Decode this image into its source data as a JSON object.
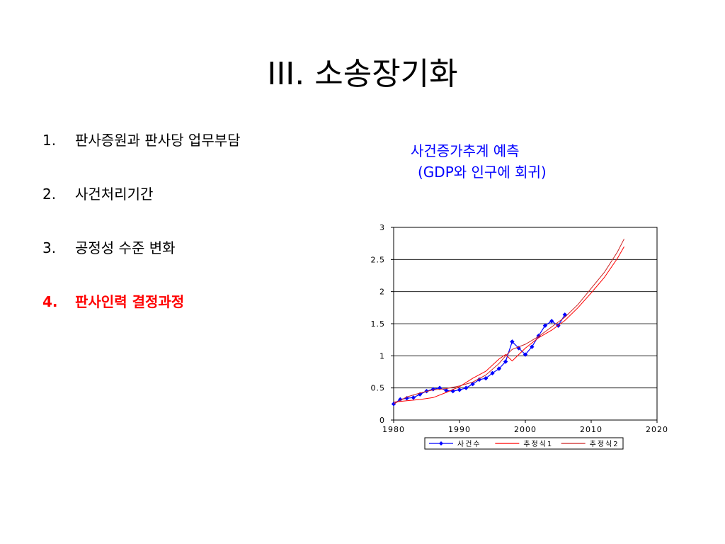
{
  "title": "III. 소송장기화",
  "agenda": [
    {
      "num": "1.",
      "label": "판사증원과 판사당 업무부담",
      "active": false
    },
    {
      "num": "2.",
      "label": "사건처리기간",
      "active": false
    },
    {
      "num": "3.",
      "label": "공정성 수준 변화",
      "active": false
    },
    {
      "num": "4.",
      "label": "판사인력 결정과정",
      "active": true
    }
  ],
  "caption": {
    "line1": "사건증가추계 예측",
    "line2": "(GDP와 인구에 회귀)"
  },
  "colors": {
    "accent": "#ff0000",
    "caption": "#0000ff",
    "series_actual": "#0000ff",
    "series_est1": "#ff0000",
    "series_est2": "#cc2222"
  },
  "chart_data": {
    "type": "line",
    "title": "",
    "xlabel": "",
    "ylabel": "",
    "xlim": [
      1980,
      2020
    ],
    "ylim": [
      0,
      3
    ],
    "xticks": [
      "1980",
      "1990",
      "2000",
      "2010",
      "2020"
    ],
    "yticks": [
      "0",
      "0.5",
      "1",
      "1.5",
      "2",
      "2.5",
      "3"
    ],
    "grid": "horizontal",
    "legend": "bottom",
    "series": [
      {
        "name": "사건수",
        "marker": "diamond",
        "x": [
          1980,
          1981,
          1982,
          1983,
          1984,
          1985,
          1986,
          1987,
          1988,
          1989,
          1990,
          1991,
          1992,
          1993,
          1994,
          1995,
          1996,
          1997,
          1998,
          1999,
          2000,
          2001,
          2002,
          2003,
          2004,
          2005,
          2006
        ],
        "y": [
          0.25,
          0.32,
          0.34,
          0.35,
          0.4,
          0.45,
          0.48,
          0.5,
          0.46,
          0.45,
          0.47,
          0.5,
          0.56,
          0.63,
          0.65,
          0.73,
          0.8,
          0.91,
          1.22,
          1.12,
          1.02,
          1.14,
          1.31,
          1.47,
          1.54,
          1.47,
          1.64
        ]
      },
      {
        "name": "추정식1",
        "x": [
          1980,
          1982,
          1984,
          1986,
          1988,
          1990,
          1992,
          1994,
          1996,
          1997,
          1998,
          2000,
          2002,
          2004,
          2006,
          2008,
          2010,
          2012,
          2014,
          2015
        ],
        "y": [
          0.28,
          0.3,
          0.32,
          0.35,
          0.43,
          0.52,
          0.65,
          0.76,
          0.95,
          1.02,
          0.92,
          1.12,
          1.28,
          1.4,
          1.55,
          1.75,
          1.98,
          2.22,
          2.52,
          2.7
        ]
      },
      {
        "name": "추정식2",
        "x": [
          1980,
          1982,
          1984,
          1986,
          1988,
          1990,
          1992,
          1994,
          1996,
          1997,
          1998,
          2000,
          2002,
          2004,
          2006,
          2008,
          2010,
          2012,
          2014,
          2015
        ],
        "y": [
          0.25,
          0.36,
          0.42,
          0.47,
          0.49,
          0.53,
          0.59,
          0.7,
          0.88,
          1.0,
          1.1,
          1.18,
          1.3,
          1.45,
          1.6,
          1.8,
          2.05,
          2.3,
          2.62,
          2.82
        ]
      }
    ]
  }
}
